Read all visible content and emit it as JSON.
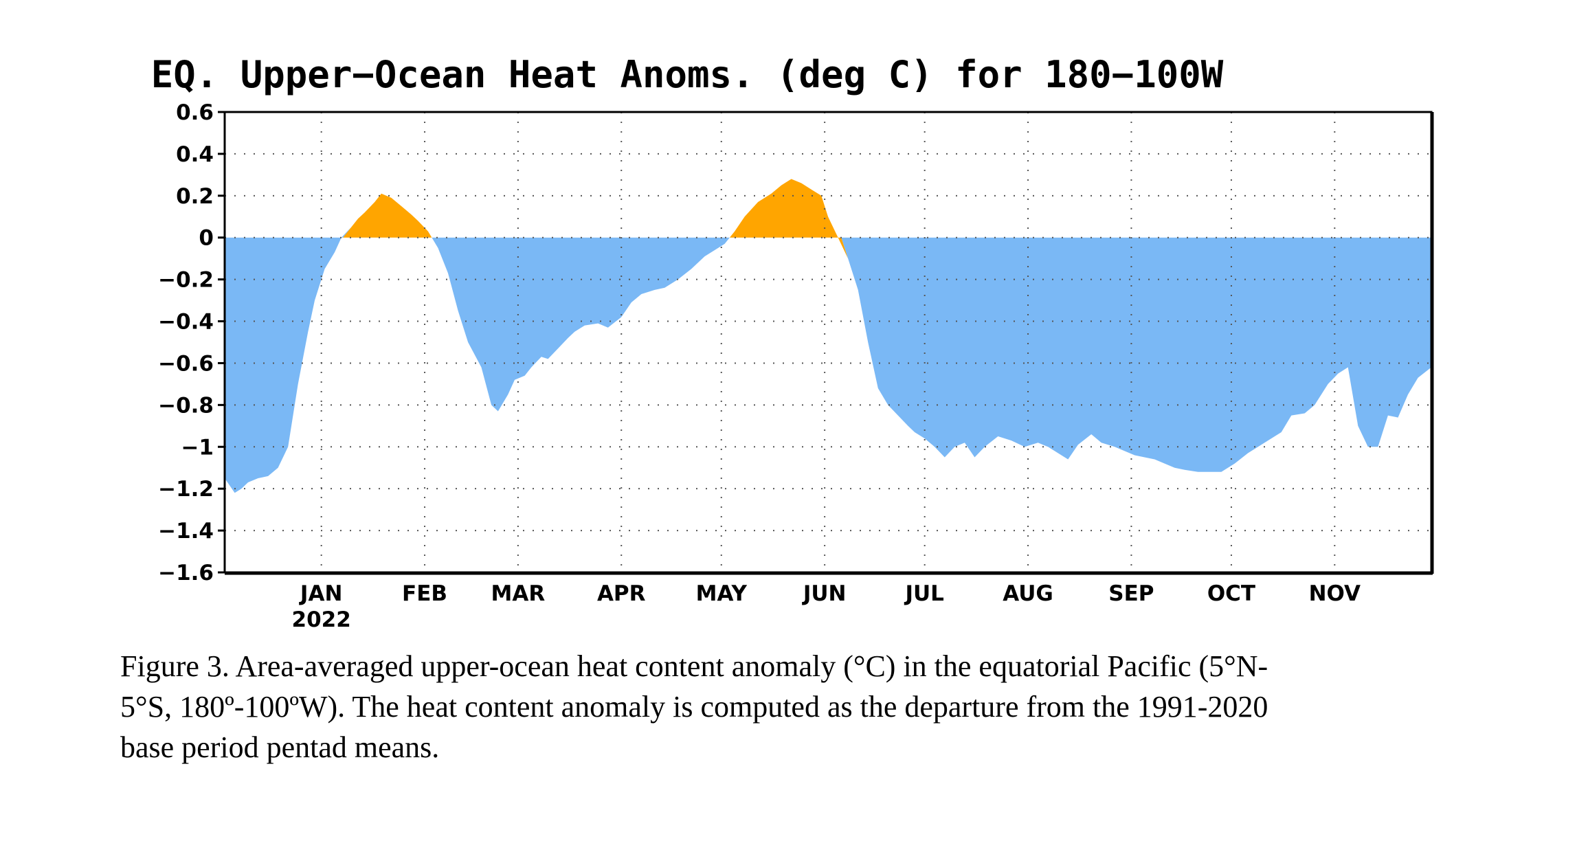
{
  "chart_data": {
    "type": "area",
    "title": "EQ. Upper−Ocean Heat Anoms. (deg C) for 180−100W",
    "xlabel": "",
    "ylabel": "",
    "ylim": [
      -1.6,
      0.6
    ],
    "yticks": [
      0.6,
      0.4,
      0.2,
      0,
      -0.2,
      -0.4,
      -0.6,
      -0.8,
      -1,
      -1.2,
      -1.4,
      -1.6
    ],
    "ytick_labels": [
      "0.6",
      "0.4",
      "0.2",
      "0",
      "−0.2",
      "−0.4",
      "−0.6",
      "−0.8",
      "−1",
      "−1.2",
      "−1.4",
      "−1.6"
    ],
    "xlim": [
      "2021-12-03",
      "2022-11-30"
    ],
    "xticks": [
      {
        "date": "2022-01-01",
        "label": "JAN",
        "sublabel": "2022"
      },
      {
        "date": "2022-02-01",
        "label": "FEB",
        "sublabel": ""
      },
      {
        "date": "2022-03-01",
        "label": "MAR",
        "sublabel": ""
      },
      {
        "date": "2022-04-01",
        "label": "APR",
        "sublabel": ""
      },
      {
        "date": "2022-05-01",
        "label": "MAY",
        "sublabel": ""
      },
      {
        "date": "2022-06-01",
        "label": "JUN",
        "sublabel": ""
      },
      {
        "date": "2022-07-01",
        "label": "JUL",
        "sublabel": ""
      },
      {
        "date": "2022-08-01",
        "label": "AUG",
        "sublabel": ""
      },
      {
        "date": "2022-09-01",
        "label": "SEP",
        "sublabel": ""
      },
      {
        "date": "2022-10-01",
        "label": "OCT",
        "sublabel": ""
      },
      {
        "date": "2022-11-01",
        "label": "NOV",
        "sublabel": ""
      }
    ],
    "grid": true,
    "positive_color": "#ffa500",
    "negative_color": "#7ab8f5",
    "series": [
      {
        "x": [
          "2021-12-03",
          "2021-12-06",
          "2021-12-08",
          "2021-12-10",
          "2021-12-13",
          "2021-12-16",
          "2021-12-19",
          "2021-12-22",
          "2021-12-25",
          "2021-12-28",
          "2021-12-30",
          "2022-01-02",
          "2022-01-05",
          "2022-01-07",
          "2022-01-10",
          "2022-01-12",
          "2022-01-14",
          "2022-01-17",
          "2022-01-19",
          "2022-01-22",
          "2022-01-25",
          "2022-01-28",
          "2022-01-30",
          "2022-02-02",
          "2022-02-05",
          "2022-02-08",
          "2022-02-11",
          "2022-02-14",
          "2022-02-18",
          "2022-02-21",
          "2022-02-23",
          "2022-02-26",
          "2022-02-28",
          "2022-03-03",
          "2022-03-05",
          "2022-03-08",
          "2022-03-10",
          "2022-03-13",
          "2022-03-16",
          "2022-03-18",
          "2022-03-21",
          "2022-03-25",
          "2022-03-28",
          "2022-04-01",
          "2022-04-04",
          "2022-04-07",
          "2022-04-11",
          "2022-04-14",
          "2022-04-18",
          "2022-04-22",
          "2022-04-26",
          "2022-04-29",
          "2022-05-02",
          "2022-05-05",
          "2022-05-08",
          "2022-05-12",
          "2022-05-16",
          "2022-05-19",
          "2022-05-22",
          "2022-05-25",
          "2022-05-28",
          "2022-05-31",
          "2022-06-02",
          "2022-06-05",
          "2022-06-08",
          "2022-06-11",
          "2022-06-14",
          "2022-06-17",
          "2022-06-20",
          "2022-06-23",
          "2022-06-26",
          "2022-06-28",
          "2022-07-01",
          "2022-07-04",
          "2022-07-07",
          "2022-07-10",
          "2022-07-13",
          "2022-07-16",
          "2022-07-19",
          "2022-07-23",
          "2022-07-27",
          "2022-07-31",
          "2022-08-04",
          "2022-08-07",
          "2022-08-10",
          "2022-08-13",
          "2022-08-16",
          "2022-08-20",
          "2022-08-23",
          "2022-08-27",
          "2022-08-30",
          "2022-09-02",
          "2022-09-05",
          "2022-09-08",
          "2022-09-11",
          "2022-09-14",
          "2022-09-17",
          "2022-09-21",
          "2022-09-25",
          "2022-09-28",
          "2022-10-02",
          "2022-10-06",
          "2022-10-09",
          "2022-10-12",
          "2022-10-16",
          "2022-10-19",
          "2022-10-23",
          "2022-10-26",
          "2022-10-30",
          "2022-11-02",
          "2022-11-05",
          "2022-11-08",
          "2022-11-11",
          "2022-11-14",
          "2022-11-17",
          "2022-11-20",
          "2022-11-23",
          "2022-11-26",
          "2022-11-30"
        ],
        "y": [
          -1.15,
          -1.22,
          -1.2,
          -1.17,
          -1.15,
          -1.14,
          -1.1,
          -1.0,
          -0.7,
          -0.45,
          -0.3,
          -0.15,
          -0.07,
          0.0,
          0.05,
          0.09,
          0.12,
          0.17,
          0.21,
          0.19,
          0.15,
          0.11,
          0.08,
          0.03,
          -0.05,
          -0.17,
          -0.35,
          -0.5,
          -0.62,
          -0.8,
          -0.83,
          -0.75,
          -0.68,
          -0.66,
          -0.62,
          -0.57,
          -0.58,
          -0.53,
          -0.48,
          -0.45,
          -0.42,
          -0.41,
          -0.43,
          -0.38,
          -0.31,
          -0.27,
          -0.25,
          -0.24,
          -0.2,
          -0.15,
          -0.09,
          -0.06,
          -0.03,
          0.03,
          0.1,
          0.17,
          0.21,
          0.25,
          0.28,
          0.26,
          0.23,
          0.2,
          0.1,
          0.0,
          -0.1,
          -0.25,
          -0.5,
          -0.72,
          -0.8,
          -0.85,
          -0.9,
          -0.93,
          -0.96,
          -1.0,
          -1.05,
          -1.0,
          -0.98,
          -1.05,
          -1.0,
          -0.95,
          -0.97,
          -1.0,
          -0.98,
          -1.0,
          -1.03,
          -1.06,
          -0.99,
          -0.94,
          -0.98,
          -1.0,
          -1.02,
          -1.04,
          -1.05,
          -1.06,
          -1.08,
          -1.1,
          -1.11,
          -1.12,
          -1.12,
          -1.12,
          -1.08,
          -1.03,
          -1.0,
          -0.97,
          -0.93,
          -0.85,
          -0.84,
          -0.8,
          -0.7,
          -0.65,
          -0.62,
          -0.9,
          -1.0,
          -1.0,
          -0.85,
          -0.86,
          -0.75,
          -0.67,
          -0.62
        ]
      }
    ]
  },
  "caption": {
    "lines": [
      "Figure 3. Area-averaged upper-ocean heat content anomaly (°C) in the equatorial Pacific (5°N-",
      "5°S, 180º-100ºW). The heat content anomaly is computed as the departure from the 1991-2020",
      "base period pentad means."
    ]
  }
}
